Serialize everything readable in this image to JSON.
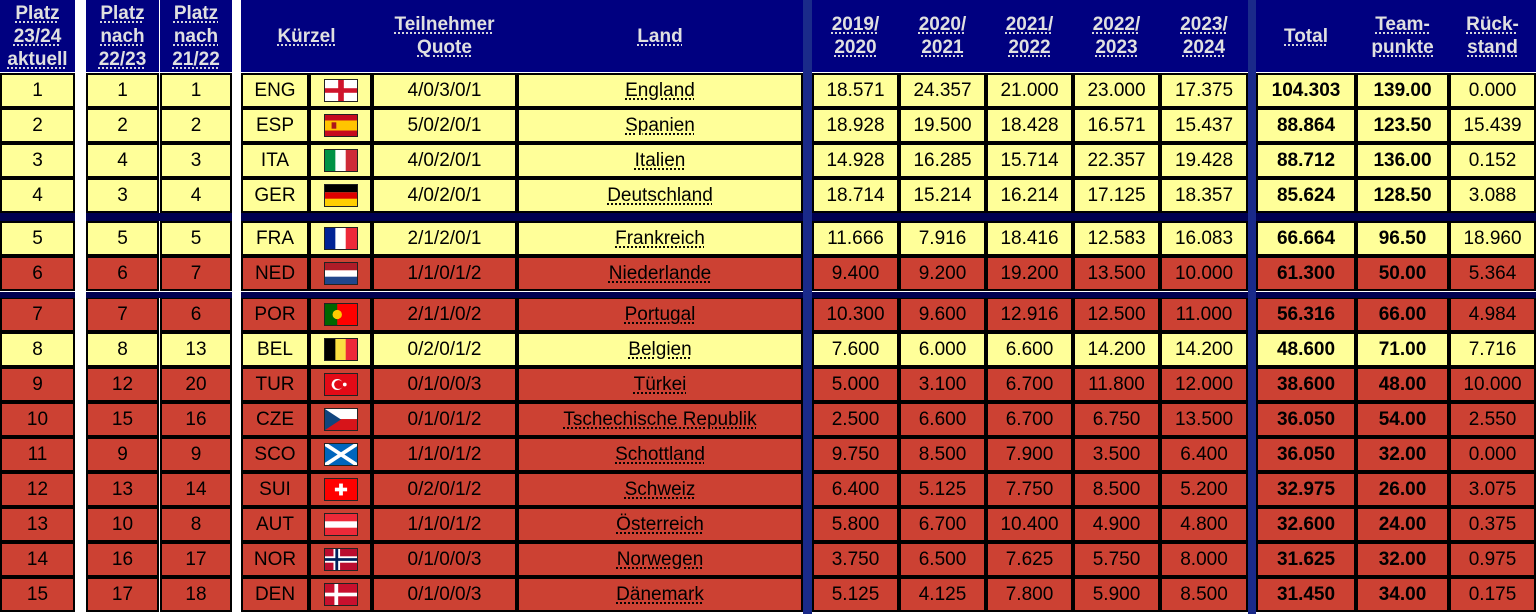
{
  "headers": {
    "platz_aktuell": "Platz\n23/24\naktuell",
    "platz_2223": "Platz\nnach\n22/23",
    "platz_2122": "Platz\nnach\n21/22",
    "kuerzel": "Kürzel",
    "quote": "Teilnehmer\nQuote",
    "land": "Land",
    "s1920": "2019/\n2020",
    "s2021": "2020/\n2021",
    "s2122": "2021/\n2022",
    "s2223": "2022/\n2023",
    "s2324": "2023/\n2024",
    "total": "Total",
    "team": "Team-\npunkte",
    "rueck": "Rück-\nstand"
  },
  "colors": {
    "header_bg": "#000080",
    "yellow": "#ffff99",
    "red": "#cc4133",
    "separator": "#000050"
  },
  "rows": [
    {
      "rank": "1",
      "p2223": "1",
      "p2122": "1",
      "code": "ENG",
      "flag": "flag-england-icon",
      "quote": "4/0/3/0/1",
      "land": "England",
      "s1920": "18.571",
      "s2021": "24.357",
      "s2122": "21.000",
      "s2223": "23.000",
      "s2324": "17.375",
      "total": "104.303",
      "team": "139.00",
      "rueck": "0.000",
      "color": "y"
    },
    {
      "rank": "2",
      "p2223": "2",
      "p2122": "2",
      "code": "ESP",
      "flag": "flag-spain-icon",
      "quote": "5/0/2/0/1",
      "land": "Spanien",
      "s1920": "18.928",
      "s2021": "19.500",
      "s2122": "18.428",
      "s2223": "16.571",
      "s2324": "15.437",
      "total": "88.864",
      "team": "123.50",
      "rueck": "15.439",
      "color": "y"
    },
    {
      "rank": "3",
      "p2223": "4",
      "p2122": "3",
      "code": "ITA",
      "flag": "flag-italy-icon",
      "quote": "4/0/2/0/1",
      "land": "Italien",
      "s1920": "14.928",
      "s2021": "16.285",
      "s2122": "15.714",
      "s2223": "22.357",
      "s2324": "19.428",
      "total": "88.712",
      "team": "136.00",
      "rueck": "0.152",
      "color": "y"
    },
    {
      "rank": "4",
      "p2223": "3",
      "p2122": "4",
      "code": "GER",
      "flag": "flag-germany-icon",
      "quote": "4/0/2/0/1",
      "land": "Deutschland",
      "s1920": "18.714",
      "s2021": "15.214",
      "s2122": "16.214",
      "s2223": "17.125",
      "s2324": "18.357",
      "total": "85.624",
      "team": "128.50",
      "rueck": "3.088",
      "color": "y"
    },
    {
      "rank": "5",
      "p2223": "5",
      "p2122": "5",
      "code": "FRA",
      "flag": "flag-france-icon",
      "quote": "2/1/2/0/1",
      "land": "Frankreich",
      "s1920": "11.666",
      "s2021": "7.916",
      "s2122": "18.416",
      "s2223": "12.583",
      "s2324": "16.083",
      "total": "66.664",
      "team": "96.50",
      "rueck": "18.960",
      "color": "y"
    },
    {
      "rank": "6",
      "p2223": "6",
      "p2122": "7",
      "code": "NED",
      "flag": "flag-netherlands-icon",
      "quote": "1/1/0/1/2",
      "land": "Niederlande",
      "s1920": "9.400",
      "s2021": "9.200",
      "s2122": "19.200",
      "s2223": "13.500",
      "s2324": "10.000",
      "total": "61.300",
      "team": "50.00",
      "rueck": "5.364",
      "color": "r"
    },
    {
      "rank": "7",
      "p2223": "7",
      "p2122": "6",
      "code": "POR",
      "flag": "flag-portugal-icon",
      "quote": "2/1/1/0/2",
      "land": "Portugal",
      "s1920": "10.300",
      "s2021": "9.600",
      "s2122": "12.916",
      "s2223": "12.500",
      "s2324": "11.000",
      "total": "56.316",
      "team": "66.00",
      "rueck": "4.984",
      "color": "r"
    },
    {
      "rank": "8",
      "p2223": "8",
      "p2122": "13",
      "code": "BEL",
      "flag": "flag-belgium-icon",
      "quote": "0/2/0/1/2",
      "land": "Belgien",
      "s1920": "7.600",
      "s2021": "6.000",
      "s2122": "6.600",
      "s2223": "14.200",
      "s2324": "14.200",
      "total": "48.600",
      "team": "71.00",
      "rueck": "7.716",
      "color": "y"
    },
    {
      "rank": "9",
      "p2223": "12",
      "p2122": "20",
      "code": "TUR",
      "flag": "flag-turkey-icon",
      "quote": "0/1/0/0/3",
      "land": "Türkei",
      "s1920": "5.000",
      "s2021": "3.100",
      "s2122": "6.700",
      "s2223": "11.800",
      "s2324": "12.000",
      "total": "38.600",
      "team": "48.00",
      "rueck": "10.000",
      "color": "r"
    },
    {
      "rank": "10",
      "p2223": "15",
      "p2122": "16",
      "code": "CZE",
      "flag": "flag-czech-icon",
      "quote": "0/1/0/1/2",
      "land": "Tschechische Republik",
      "s1920": "2.500",
      "s2021": "6.600",
      "s2122": "6.700",
      "s2223": "6.750",
      "s2324": "13.500",
      "total": "36.050",
      "team": "54.00",
      "rueck": "2.550",
      "color": "r"
    },
    {
      "rank": "11",
      "p2223": "9",
      "p2122": "9",
      "code": "SCO",
      "flag": "flag-scotland-icon",
      "quote": "1/1/0/1/2",
      "land": "Schottland",
      "s1920": "9.750",
      "s2021": "8.500",
      "s2122": "7.900",
      "s2223": "3.500",
      "s2324": "6.400",
      "total": "36.050",
      "team": "32.00",
      "rueck": "0.000",
      "color": "r"
    },
    {
      "rank": "12",
      "p2223": "13",
      "p2122": "14",
      "code": "SUI",
      "flag": "flag-switzerland-icon",
      "quote": "0/2/0/1/2",
      "land": "Schweiz",
      "s1920": "6.400",
      "s2021": "5.125",
      "s2122": "7.750",
      "s2223": "8.500",
      "s2324": "5.200",
      "total": "32.975",
      "team": "26.00",
      "rueck": "3.075",
      "color": "r"
    },
    {
      "rank": "13",
      "p2223": "10",
      "p2122": "8",
      "code": "AUT",
      "flag": "flag-austria-icon",
      "quote": "1/1/0/1/2",
      "land": "Österreich",
      "s1920": "5.800",
      "s2021": "6.700",
      "s2122": "10.400",
      "s2223": "4.900",
      "s2324": "4.800",
      "total": "32.600",
      "team": "24.00",
      "rueck": "0.375",
      "color": "r"
    },
    {
      "rank": "14",
      "p2223": "16",
      "p2122": "17",
      "code": "NOR",
      "flag": "flag-norway-icon",
      "quote": "0/1/0/0/3",
      "land": "Norwegen",
      "s1920": "3.750",
      "s2021": "6.500",
      "s2122": "7.625",
      "s2223": "5.750",
      "s2324": "8.000",
      "total": "31.625",
      "team": "32.00",
      "rueck": "0.975",
      "color": "r"
    },
    {
      "rank": "15",
      "p2223": "17",
      "p2122": "18",
      "code": "DEN",
      "flag": "flag-denmark-icon",
      "quote": "0/1/0/0/3",
      "land": "Dänemark",
      "s1920": "5.125",
      "s2021": "4.125",
      "s2122": "7.800",
      "s2223": "5.900",
      "s2324": "8.500",
      "total": "31.450",
      "team": "34.00",
      "rueck": "0.175",
      "color": "r"
    }
  ]
}
